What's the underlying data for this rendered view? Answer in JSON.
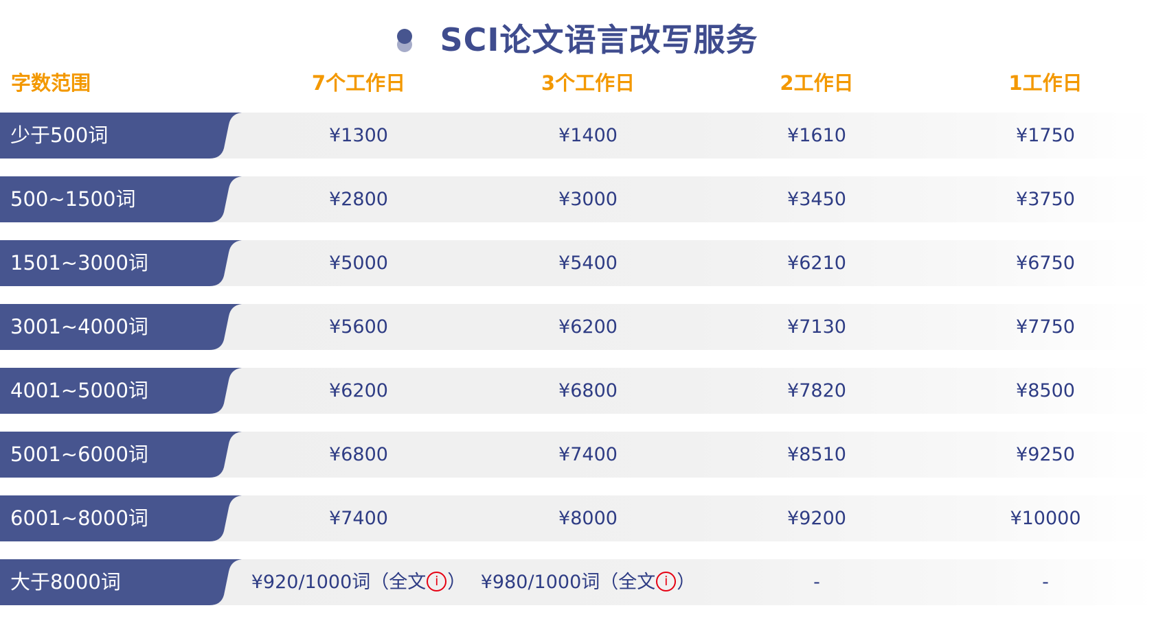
{
  "title": "SCI论文语言改写服务",
  "colors": {
    "accent": "#f39800",
    "label_bg": "#47558f",
    "text": "#2e3c84",
    "info": "#e60012"
  },
  "headers": [
    "字数范围",
    "7个工作日",
    "3个工作日",
    "2工作日",
    "1工作日"
  ],
  "rows": [
    {
      "label": "少于500词",
      "prices": [
        "¥1300",
        "¥1400",
        "¥1610",
        "¥1750"
      ]
    },
    {
      "label": "500~1500词",
      "prices": [
        "¥2800",
        "¥3000",
        "¥3450",
        "¥3750"
      ]
    },
    {
      "label": "1501~3000词",
      "prices": [
        "¥5000",
        "¥5400",
        "¥6210",
        "¥6750"
      ]
    },
    {
      "label": "3001~4000词",
      "prices": [
        "¥5600",
        "¥6200",
        "¥7130",
        "¥7750"
      ]
    },
    {
      "label": "4001~5000词",
      "prices": [
        "¥6200",
        "¥6800",
        "¥7820",
        "¥8500"
      ]
    },
    {
      "label": "5001~6000词",
      "prices": [
        "¥6800",
        "¥7400",
        "¥8510",
        "¥9250"
      ]
    },
    {
      "label": "6001~8000词",
      "prices": [
        "¥7400",
        "¥8000",
        "¥9200",
        "¥10000"
      ]
    }
  ],
  "last_row": {
    "label": "大于8000词",
    "prices": [
      {
        "text": "¥920/1000词（全文",
        "icon": "info-icon",
        "icon_glyph": "i",
        "close": "）"
      },
      {
        "text": "¥980/1000词（全文",
        "icon": "info-icon",
        "icon_glyph": "i",
        "close": "）"
      },
      "-",
      "-"
    ]
  }
}
